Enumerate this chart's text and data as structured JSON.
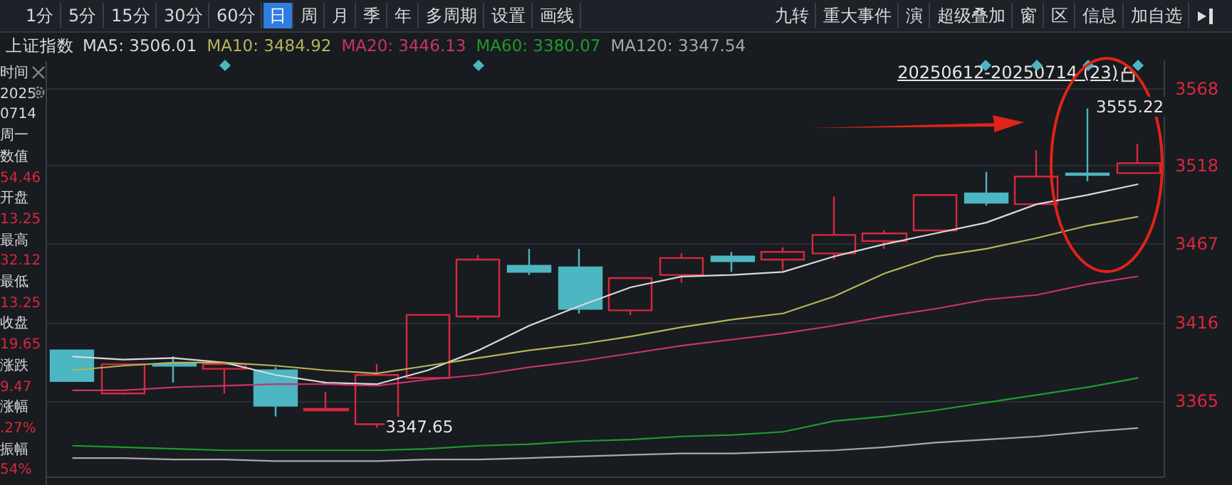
{
  "chart_data": {
    "type": "candlestick",
    "title": "上证指数",
    "categories": [
      null,
      null,
      null,
      null,
      null,
      null,
      null,
      null,
      null,
      null,
      null,
      null,
      null,
      null,
      null,
      null,
      null,
      null,
      null,
      null,
      null,
      null
    ],
    "ohlc": [
      [
        3398,
        3398,
        3378,
        3378
      ],
      [
        3370,
        3389,
        3369,
        3389
      ],
      [
        3389,
        3394,
        3377,
        3388
      ],
      [
        3386,
        3389,
        3370,
        3389
      ],
      [
        3385,
        3387,
        3355,
        3362
      ],
      [
        3359,
        3371,
        3359,
        3360
      ],
      [
        3350,
        3389,
        3347.65,
        3382
      ],
      [
        3380,
        3421,
        3380,
        3421
      ],
      [
        3420,
        3460,
        3418,
        3457
      ],
      [
        3453,
        3464,
        3447,
        3449
      ],
      [
        3452,
        3464,
        3422,
        3425
      ],
      [
        3424,
        3445,
        3421,
        3445
      ],
      [
        3447,
        3461,
        3442,
        3458
      ],
      [
        3459,
        3462,
        3449,
        3456
      ],
      [
        3457,
        3465,
        3450,
        3462
      ],
      [
        3461,
        3498,
        3457,
        3473
      ],
      [
        3469,
        3476,
        3464,
        3474
      ],
      [
        3476,
        3499,
        3476,
        3499
      ],
      [
        3500,
        3514,
        3492,
        3494
      ],
      [
        3493,
        3528,
        3493,
        3511
      ],
      [
        3513,
        3555.22,
        3508,
        3512
      ],
      [
        3513.25,
        3532.12,
        3513.25,
        3519.65
      ]
    ],
    "colors": [
      "#4cb6c2",
      "#d8283c",
      "#4cb6c2",
      "#d8283c",
      "#4cb6c2",
      "#d8283c",
      "#d8283c",
      "#d8283c",
      "#d8283c",
      "#4cb6c2",
      "#4cb6c2",
      "#d8283c",
      "#d8283c",
      "#4cb6c2",
      "#d8283c",
      "#d8283c",
      "#d8283c",
      "#d8283c",
      "#4cb6c2",
      "#d8283c",
      "#4cb6c2",
      "#d8283c"
    ],
    "series": [
      {
        "name": "MA5: 3506.01",
        "type": "line",
        "color": "#d9d9d9",
        "values": [
          3394,
          3392,
          3393,
          3390,
          3382,
          3377,
          3376,
          3385,
          3398,
          3414,
          3427,
          3439,
          3446,
          3447,
          3449,
          3459,
          3467,
          3474,
          3481,
          3493,
          3499,
          3506.01
        ]
      },
      {
        "name": "MA10: 3484.92",
        "type": "line",
        "color": "#b5b55a",
        "values": [
          3385,
          3388,
          3390,
          3390,
          3388,
          3385,
          3383,
          3388,
          3393,
          3398,
          3402,
          3407,
          3413,
          3418,
          3422,
          3433,
          3448,
          3459,
          3464,
          3471,
          3479,
          3484.92
        ]
      },
      {
        "name": "MA20: 3446.13",
        "type": "line",
        "color": "#c8336e",
        "values": [
          3372,
          3372,
          3374,
          3375,
          3376,
          3376,
          3375,
          3379,
          3382,
          3387,
          3391,
          3396,
          3401,
          3405,
          3409,
          3414,
          3420,
          3425,
          3431,
          3434,
          3441,
          3446.13
        ]
      },
      {
        "name": "MA60: 3380.07",
        "type": "line",
        "color": "#1f9b2a",
        "values": [
          3336,
          3335,
          3334,
          3333,
          3333,
          3333,
          3333,
          3334,
          3336,
          3337,
          3339,
          3340,
          3342,
          3343,
          3345,
          3352,
          3355,
          3359,
          3364,
          3369,
          3374,
          3380.07
        ]
      },
      {
        "name": "MA120: 3347.54",
        "type": "line",
        "color": "#a8a8a8",
        "values": [
          3328,
          3328,
          3327,
          3327,
          3326,
          3326,
          3326,
          3327,
          3327,
          3328,
          3329,
          3330,
          3331,
          3331,
          3332,
          3333,
          3335,
          3338,
          3340,
          3342,
          3345,
          3347.54
        ]
      }
    ],
    "ylim": [
      3316,
      3586
    ],
    "yticks": [
      3365,
      3416,
      3467,
      3518,
      3568
    ],
    "grid": "y",
    "tick_labels": "y",
    "marker": "none",
    "annotations": [
      "1分",
      "5分",
      "15分",
      "30分",
      "60分",
      "日",
      "周",
      "月",
      "季",
      "年",
      "多周期",
      "设置",
      "画线",
      "九转",
      "重大事件",
      "演",
      "超级叠加",
      "窗",
      "区",
      "信息",
      "加自选",
      "时间",
      "2025",
      "0714",
      "周一",
      "数值",
      "54.46",
      "开盘",
      "13.25",
      "最高",
      "32.12",
      "最低",
      "13.25",
      "收盘",
      "19.65",
      "涨跌",
      "9.47",
      "涨幅",
      ".27%",
      "振幅",
      "54%",
      "20250612-20250714 (23)",
      "3555.22",
      "3347.65"
    ]
  }
}
